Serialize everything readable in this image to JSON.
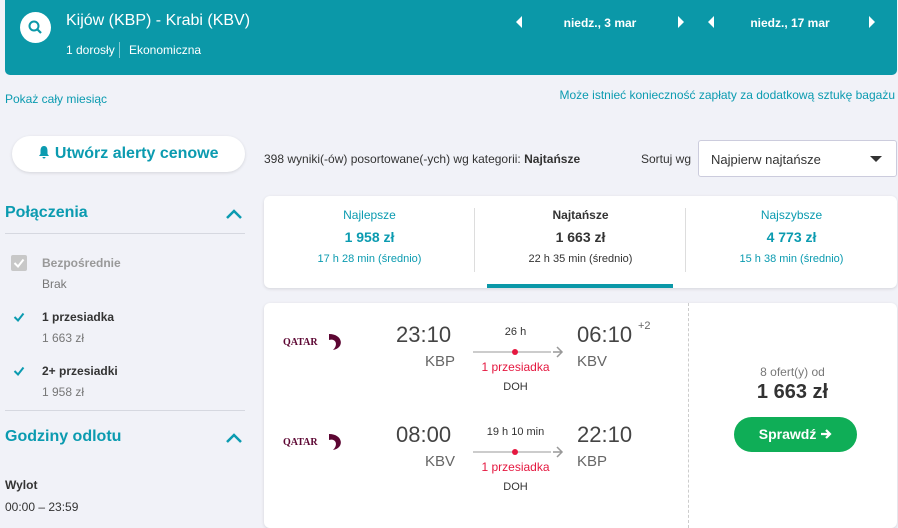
{
  "header": {
    "route": "Kijów (KBP) - Krabi (KBV)",
    "passengers": "1 dorosły",
    "cabin": "Ekonomiczna",
    "outbound_date": "niedz., 3 mar",
    "return_date": "niedz., 17 mar"
  },
  "links": {
    "month": "Pokaż cały miesiąc",
    "baggage": "Może istnieć konieczność zapłaty za dodatkową sztukę bagażu"
  },
  "alert_button": "Utwórz alerty cenowe",
  "results_summary": {
    "count_text": "398 wyniki(-ów) posortowane(-ych) wg kategorii:",
    "sort_category": "Najtańsze",
    "sort_label": "Sortuj wg",
    "sort_value": "Najpierw najtańsze"
  },
  "filters": {
    "stops": {
      "title": "Połączenia",
      "options": [
        {
          "label": "Bezpośrednie",
          "price": "Brak"
        },
        {
          "label": "1 przesiadka",
          "price": "1 663 zł"
        },
        {
          "label": "2+ przesiadki",
          "price": "1 958 zł"
        }
      ]
    },
    "departure": {
      "title": "Godziny odlotu",
      "label": "Wylot",
      "range": "00:00 – 23:59"
    }
  },
  "tabs": [
    {
      "label": "Najlepsze",
      "price": "1 958 zł",
      "duration": "17 h 28 min (średnio)"
    },
    {
      "label": "Najtańsze",
      "price": "1 663 zł",
      "duration": "22 h 35 min (średnio)"
    },
    {
      "label": "Najszybsze",
      "price": "4 773 zł",
      "duration": "15 h 38 min (średnio)"
    }
  ],
  "result": {
    "legs": [
      {
        "airline": "QATAR",
        "depart_time": "23:10",
        "depart_airport": "KBP",
        "duration": "26 h",
        "stops": "1 przesiadka",
        "via": "DOH",
        "arrive_time": "06:10",
        "day_offset": "+2",
        "arrive_airport": "KBV"
      },
      {
        "airline": "QATAR",
        "depart_time": "08:00",
        "depart_airport": "KBV",
        "duration": "19 h 10 min",
        "stops": "1 przesiadka",
        "via": "DOH",
        "arrive_time": "22:10",
        "arrive_airport": "KBP"
      }
    ],
    "offers": "8 ofert(y) od",
    "price": "1 663 zł",
    "button": "Sprawdź"
  }
}
